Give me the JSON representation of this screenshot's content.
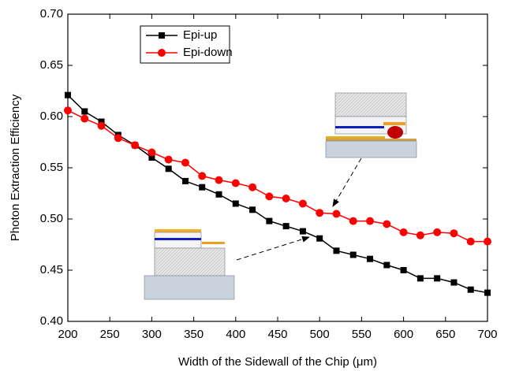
{
  "chart_data": {
    "type": "line",
    "x_label": "Width of the Sidewall of the Chip (μm)",
    "y_label": "Photon Extraction Efficiency",
    "x": [
      200,
      220,
      240,
      260,
      280,
      300,
      320,
      340,
      360,
      380,
      400,
      420,
      440,
      460,
      480,
      500,
      520,
      540,
      560,
      580,
      600,
      620,
      640,
      660,
      680,
      700
    ],
    "series": [
      {
        "name": "Epi-up",
        "color": "#000000",
        "marker": "square",
        "values": [
          0.621,
          0.605,
          0.595,
          0.582,
          0.572,
          0.56,
          0.549,
          0.537,
          0.531,
          0.524,
          0.515,
          0.509,
          0.498,
          0.493,
          0.488,
          0.481,
          0.469,
          0.465,
          0.461,
          0.455,
          0.45,
          0.442,
          0.442,
          0.438,
          0.431,
          0.428
        ]
      },
      {
        "name": "Epi-down",
        "color": "#ff0000",
        "marker": "circle",
        "values": [
          0.606,
          0.598,
          0.591,
          0.579,
          0.572,
          0.565,
          0.558,
          0.555,
          0.542,
          0.538,
          0.535,
          0.531,
          0.522,
          0.52,
          0.515,
          0.506,
          0.505,
          0.498,
          0.498,
          0.495,
          0.487,
          0.484,
          0.487,
          0.486,
          0.478,
          0.478
        ]
      }
    ],
    "xlim": [
      200,
      700
    ],
    "xticks": [
      200,
      250,
      300,
      350,
      400,
      450,
      500,
      550,
      600,
      650,
      700
    ],
    "ylim": [
      0.4,
      0.7
    ],
    "yticks": [
      {
        "value": 0.4,
        "label": "0.40"
      },
      0.45,
      {
        "value": 0.5,
        "label": "0.50"
      },
      0.55,
      {
        "value": 0.6,
        "label": "0.60"
      },
      0.65,
      {
        "value": 0.7,
        "label": "0.70"
      }
    ]
  }
}
